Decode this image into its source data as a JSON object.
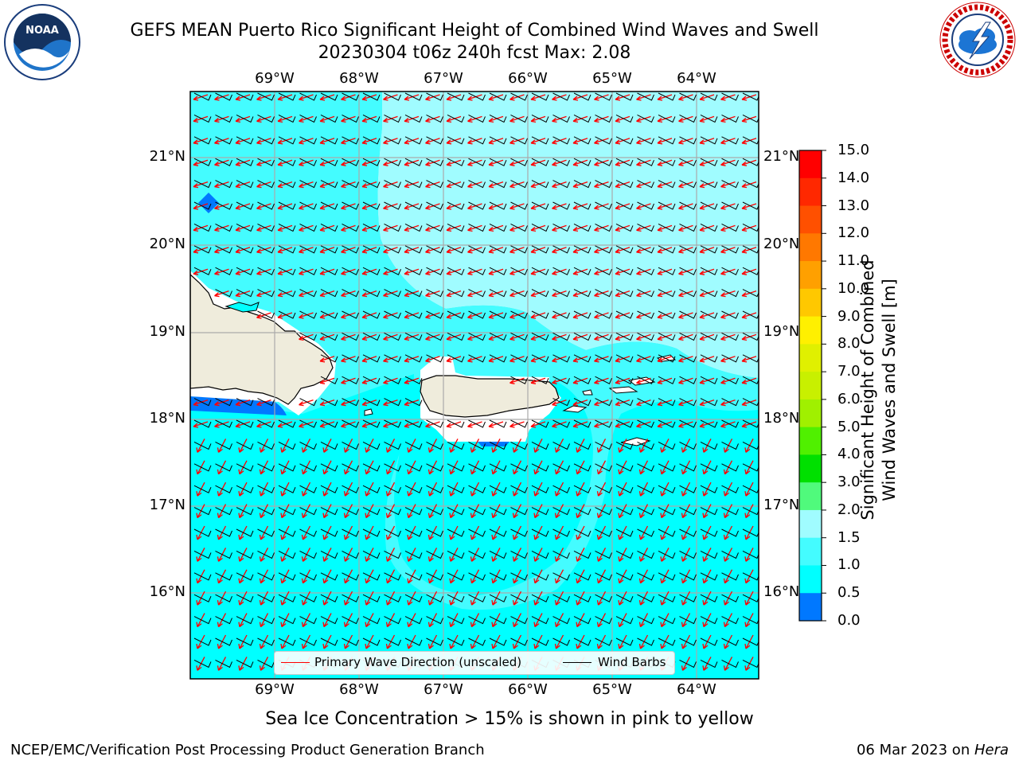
{
  "header": {
    "title_line1": "GEFS MEAN Puerto Rico Significant Height of Combined Wind Waves and Swell",
    "title_line2": "20230304 t06z 240h fcst   Max: 2.08"
  },
  "logos": {
    "left": "NOAA",
    "left_ring_text": "NATIONAL OCEANIC AND ATMOSPHERIC ADMINISTRATION · U.S. DEPARTMENT OF COMMERCE",
    "right_ring_text": "NATIONAL WEATHER SERVICE"
  },
  "map": {
    "lon_labels": [
      "69°W",
      "68°W",
      "67°W",
      "66°W",
      "65°W",
      "64°W"
    ],
    "lat_labels": [
      "21°N",
      "20°N",
      "19°N",
      "18°N",
      "17°N",
      "16°N"
    ],
    "colors": {
      "land": "#efecdc",
      "calm": "#00ffff",
      "light": "#44fcff",
      "pale": "#a0fcff",
      "deep": "#0078ff",
      "arrow": "#ff0000",
      "barb": "#000000"
    },
    "legend": {
      "wave_label": "Primary Wave Direction (unscaled)",
      "barb_label": "Wind Barbs"
    }
  },
  "colorbar": {
    "label_line1": "Significant Height of Combined",
    "label_line2": "Wind Waves and Swell [m]",
    "ticks": [
      "15.0",
      "14.0",
      "13.0",
      "12.0",
      "11.0",
      "10.0",
      "9.0",
      "8.0",
      "7.0",
      "6.0",
      "5.0",
      "4.0",
      "3.0",
      "2.0",
      "1.5",
      "1.0",
      "0.5",
      "0.0"
    ],
    "colors": [
      "#ff0000",
      "#ff2800",
      "#ff5000",
      "#ff7800",
      "#ffa000",
      "#ffc800",
      "#fff000",
      "#e0f000",
      "#c8f000",
      "#a0f000",
      "#50f000",
      "#00e000",
      "#50fa7c",
      "#a0fcff",
      "#44fcff",
      "#00ffff",
      "#0078ff",
      "#0000ff"
    ]
  },
  "footer": {
    "sea_ice_note": "Sea Ice Concentration > 15% is shown in pink to yellow",
    "branch": "NCEP/EMC/Verification Post Processing Product Generation Branch",
    "date": "06 Mar 2023 on ",
    "machine": "Hera"
  }
}
